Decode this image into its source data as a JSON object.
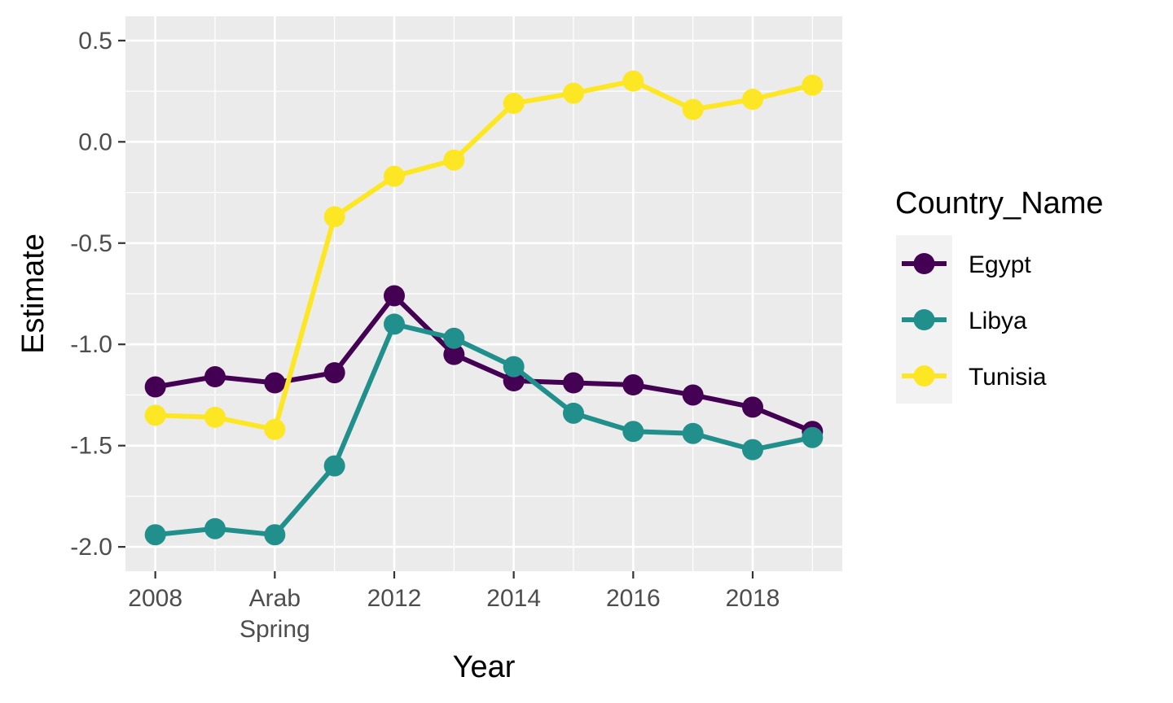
{
  "chart_data": {
    "type": "line",
    "title": "",
    "xlabel": "Year",
    "ylabel": "Estimate",
    "xlim": [
      2007.5,
      2019.5
    ],
    "ylim": [
      -2.12,
      0.62
    ],
    "x_ticks": [
      {
        "value": 2008,
        "label": "2008"
      },
      {
        "value": 2010,
        "label": "Arab",
        "label2": "Spring"
      },
      {
        "value": 2012,
        "label": "2012"
      },
      {
        "value": 2014,
        "label": "2014"
      },
      {
        "value": 2016,
        "label": "2016"
      },
      {
        "value": 2018,
        "label": "2018"
      }
    ],
    "y_ticks": [
      {
        "value": 0.5,
        "label": "0.5"
      },
      {
        "value": 0.0,
        "label": "0.0"
      },
      {
        "value": -0.5,
        "label": "-0.5"
      },
      {
        "value": -1.0,
        "label": "-1.0"
      },
      {
        "value": -1.5,
        "label": "-1.5"
      },
      {
        "value": -2.0,
        "label": "-2.0"
      }
    ],
    "grid": true,
    "legend": {
      "title": "Country_Name",
      "position": "right"
    },
    "x": [
      2008,
      2009,
      2010,
      2011,
      2012,
      2013,
      2014,
      2015,
      2016,
      2017,
      2018,
      2019
    ],
    "series": [
      {
        "name": "Egypt",
        "color": "#440154",
        "values": [
          -1.21,
          -1.16,
          -1.19,
          -1.14,
          -0.76,
          -1.05,
          -1.18,
          -1.19,
          -1.2,
          -1.25,
          -1.31,
          -1.43
        ]
      },
      {
        "name": "Libya",
        "color": "#21908C",
        "values": [
          -1.94,
          -1.91,
          -1.94,
          -1.6,
          -0.9,
          -0.97,
          -1.11,
          -1.34,
          -1.43,
          -1.44,
          -1.52,
          -1.46
        ]
      },
      {
        "name": "Tunisia",
        "color": "#FDE725",
        "values": [
          -1.35,
          -1.36,
          -1.42,
          -0.37,
          -0.17,
          -0.09,
          0.19,
          0.24,
          0.3,
          0.16,
          0.21,
          0.28
        ]
      }
    ]
  }
}
